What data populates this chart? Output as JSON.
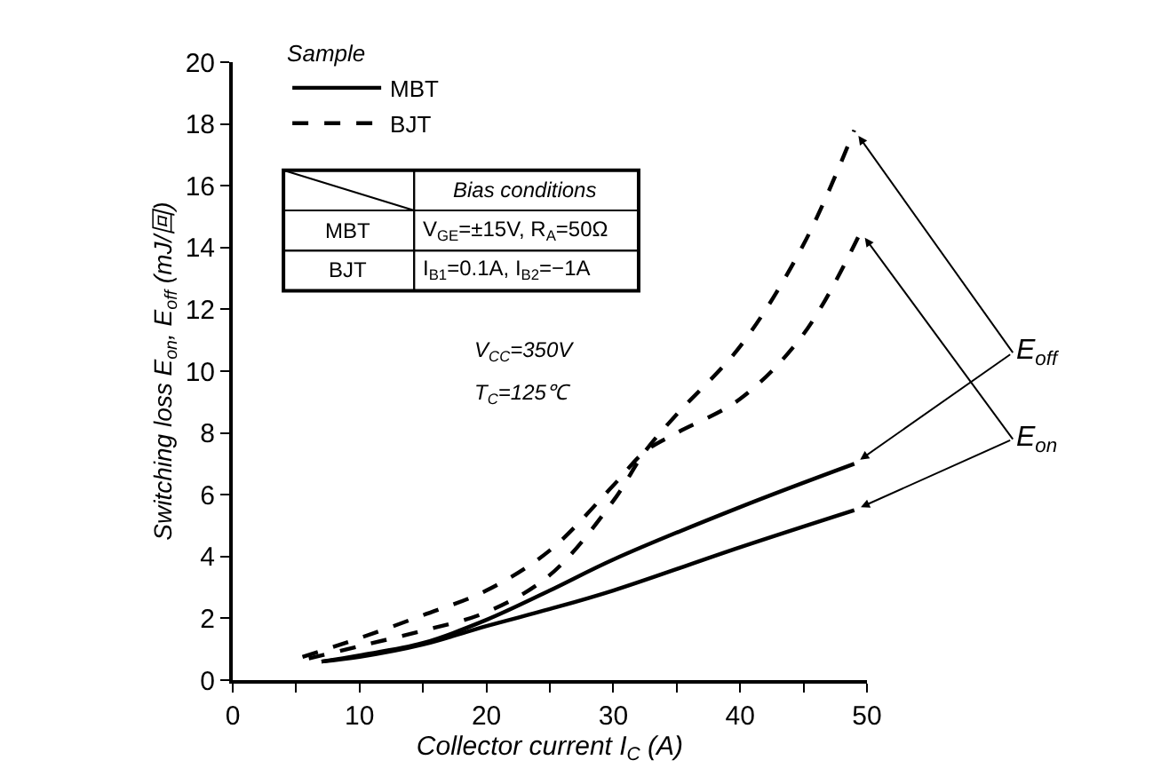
{
  "chart_data": {
    "type": "line",
    "xlabel": "Collector current I$_{C}$ (A)",
    "ylabel": "Switching loss E$_{on}$, E$_{off}$ (mJ/回)",
    "legend_title": "Sample",
    "xlim": [
      0,
      50
    ],
    "ylim": [
      0,
      20
    ],
    "xticks": [
      0,
      {
        "value": 5,
        "label": null
      },
      10,
      {
        "value": 15,
        "label": null
      },
      20,
      {
        "value": 25,
        "label": null
      },
      30,
      {
        "value": 35,
        "label": null
      },
      40,
      {
        "value": 45,
        "label": null
      },
      50
    ],
    "yticks": [
      0,
      2,
      4,
      6,
      8,
      10,
      12,
      14,
      16,
      18,
      20
    ],
    "grid": false,
    "legend": "top left",
    "marker": "none",
    "series": [
      {
        "name": "MBT",
        "color": "#000000",
        "line_style": "solid",
        "x": [
          7,
          10,
          15,
          20,
          25,
          30,
          40,
          49
        ],
        "values": [
          0.6,
          0.8,
          1.2,
          1.95,
          2.9,
          3.9,
          5.6,
          7.0
        ]
      },
      {
        "color": "#000000",
        "line_style": "solid",
        "x": [
          7,
          10,
          15,
          20,
          25,
          30,
          40,
          49
        ],
        "values": [
          0.6,
          0.75,
          1.15,
          1.75,
          2.3,
          2.9,
          4.3,
          5.5
        ]
      },
      {
        "name": "BJT",
        "color": "#000000",
        "line_style": "dashed",
        "x": [
          6,
          10,
          15,
          20,
          25,
          30,
          32.5,
          35,
          40,
          45,
          49
        ],
        "values": [
          0.7,
          1.1,
          1.6,
          2.2,
          3.4,
          5.8,
          7.4,
          8.6,
          10.8,
          14.1,
          17.8
        ]
      },
      {
        "color": "#000000",
        "line_style": "dashed",
        "x": [
          5.5,
          10,
          15,
          20,
          25,
          30,
          32.5,
          35,
          40,
          45,
          49.5
        ],
        "values": [
          0.75,
          1.36,
          2.1,
          2.9,
          4.2,
          6.3,
          7.4,
          8.0,
          9.1,
          11.2,
          14.5
        ]
      }
    ],
    "annotations": [
      {
        "text": "E$_{off}$",
        "x": 49,
        "y": 17.8
      },
      {
        "text": "E$_{on}$",
        "x": 49.5,
        "y": 14.5
      },
      "Bias conditions",
      "MBT",
      "V$_{GE}$=±15V, R$_{A}$=50Ω",
      "BJT",
      "I$_{B1}$=0.1A, I$_{B2}$=−1A",
      "V$_{CC}$=350V",
      "T$_{C}$=125℃"
    ]
  }
}
